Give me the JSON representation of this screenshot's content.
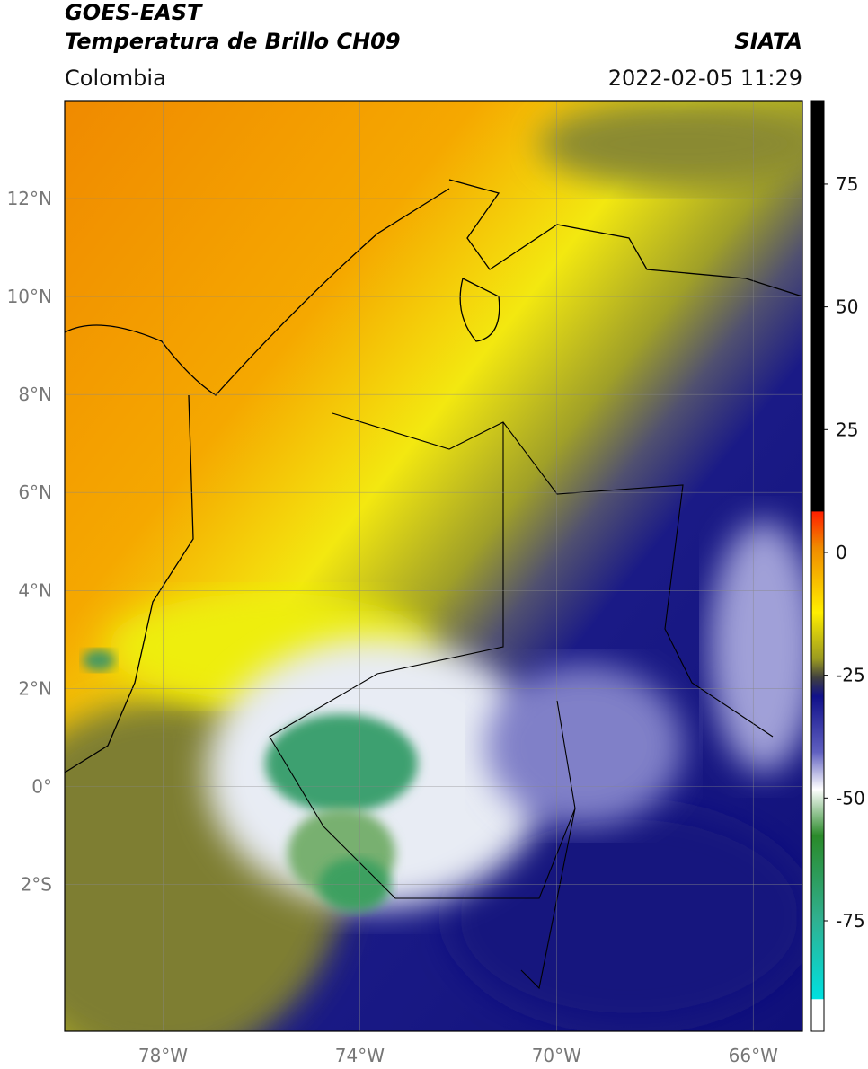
{
  "header": {
    "title_1": "GOES-EAST",
    "title_2": "Temperatura de Brillo CH09",
    "region": "Colombia",
    "source": "SIATA",
    "datetime": "2022-02-05 11:29"
  },
  "map": {
    "lon_range": [
      -80,
      -65
    ],
    "lat_range": [
      -5,
      14
    ],
    "lon_ticks": [
      {
        "value": -78,
        "label": "78°W"
      },
      {
        "value": -74,
        "label": "74°W"
      },
      {
        "value": -70,
        "label": "70°W"
      },
      {
        "value": -66,
        "label": "66°W"
      }
    ],
    "lat_ticks": [
      {
        "value": 12,
        "label": "12°N"
      },
      {
        "value": 10,
        "label": "10°N"
      },
      {
        "value": 8,
        "label": "8°N"
      },
      {
        "value": 6,
        "label": "6°N"
      },
      {
        "value": 4,
        "label": "4°N"
      },
      {
        "value": 2,
        "label": "2°N"
      },
      {
        "value": 0,
        "label": "0°"
      },
      {
        "value": -2,
        "label": "2°S"
      }
    ]
  },
  "colorbar": {
    "range": [
      -97.5,
      92
    ],
    "ticks": [
      75,
      50,
      25,
      0,
      -25,
      -50,
      -75
    ]
  }
}
